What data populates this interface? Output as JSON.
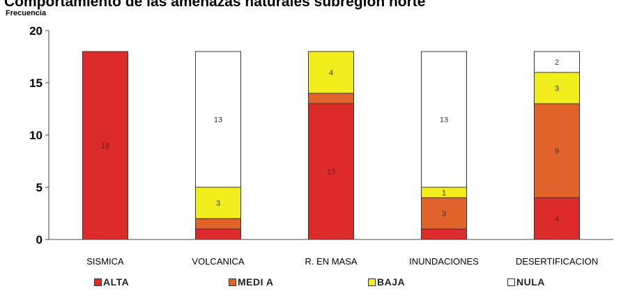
{
  "chart_data": {
    "type": "bar",
    "stacked": true,
    "title": "Comportamiento de las amenazas naturales subregión norte",
    "ylabel": "Frecuencia",
    "xlabel": "",
    "ylim": [
      0,
      20
    ],
    "yticks": [
      0,
      5,
      10,
      15,
      20
    ],
    "grid": false,
    "legend_position": "bottom",
    "categories": [
      "SISMICA",
      "VOLCANICA",
      "R. EN MASA",
      "INUNDACIONES",
      "DESERTIFICACION"
    ],
    "series": [
      {
        "name": "ALTA",
        "color": "#dd2a2a",
        "values": [
          18,
          1,
          13,
          1,
          4
        ]
      },
      {
        "name": "MEDI A",
        "color": "#e2632a",
        "values": [
          0,
          1,
          1,
          3,
          9
        ]
      },
      {
        "name": "BAJA",
        "color": "#f2ee1d",
        "values": [
          0,
          3,
          4,
          1,
          3
        ]
      },
      {
        "name": "NULA",
        "color": "#ffffff",
        "values": [
          0,
          13,
          0,
          13,
          2
        ]
      }
    ],
    "data_labels": [
      [
        "18",
        "",
        "",
        ""
      ],
      [
        "",
        "",
        "3",
        "13"
      ],
      [
        "13",
        "",
        "4",
        ""
      ],
      [
        "",
        "3",
        "1",
        "13"
      ],
      [
        "4",
        "9",
        "3",
        "2"
      ]
    ]
  }
}
